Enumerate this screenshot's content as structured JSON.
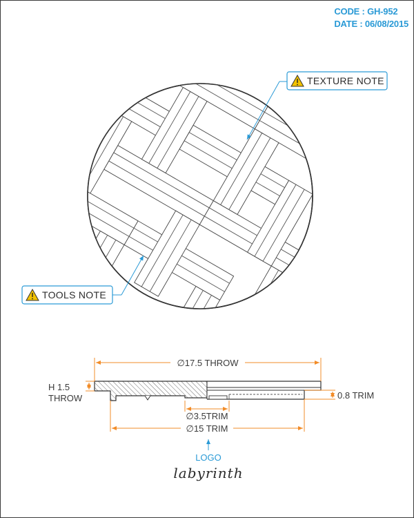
{
  "header": {
    "code": "CODE : GH-952",
    "date": "DATE : 06/08/2015"
  },
  "callouts": {
    "texture_note": "TEXTURE NOTE",
    "tools_note": "TOOLS NOTE",
    "warning_icon": "warning-triangle-icon"
  },
  "dimensions": {
    "outer_diameter": "∅17.5 THROW",
    "height_line1": "H 1.5",
    "height_line2": "THROW",
    "trim_thickness": "0.8 TRIM",
    "hole_diameter": "∅3.5TRIM",
    "inner_diameter": "∅15 TRIM"
  },
  "logo": {
    "label": "LOGO",
    "brand": "labyrinth"
  },
  "colors": {
    "accent": "#2a9ad6",
    "dimension": "#f28c28",
    "line": "#333333",
    "warning": "#f2c200"
  }
}
